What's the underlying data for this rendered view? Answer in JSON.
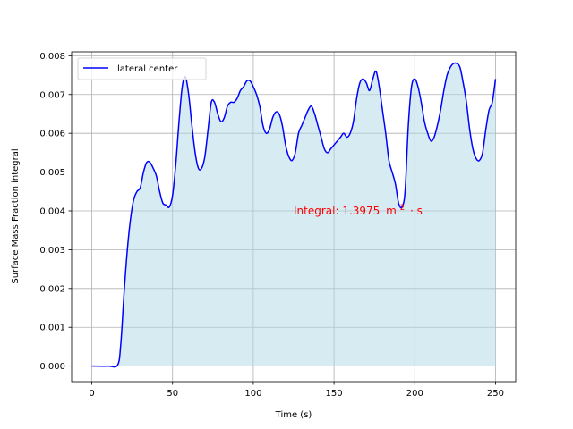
{
  "chart_data": {
    "type": "area",
    "title": "",
    "xlabel": "Time (s)",
    "ylabel": "Surface Mass Fraction integral",
    "xlim": [
      -12.5,
      262.5
    ],
    "ylim": [
      -0.0004,
      0.0081
    ],
    "xticks": [
      0,
      50,
      100,
      150,
      200,
      250
    ],
    "xtick_labels": [
      "0",
      "50",
      "100",
      "150",
      "200",
      "250"
    ],
    "yticks": [
      0.0,
      0.001,
      0.002,
      0.003,
      0.004,
      0.005,
      0.006,
      0.007,
      0.008
    ],
    "ytick_labels": [
      "0.000",
      "0.001",
      "0.002",
      "0.003",
      "0.004",
      "0.005",
      "0.006",
      "0.007",
      "0.008"
    ],
    "grid": true,
    "legend_position": "top-left",
    "line_color": "#0000ff",
    "fill_color": "#add8e6",
    "annotation": {
      "text_prefix": "Integral: 1.3975",
      "unit_base": "m",
      "unit_exp": "2",
      "unit_suffix": "· s",
      "x": 125,
      "y": 0.004,
      "color": "#ff0000"
    },
    "series": [
      {
        "name": "lateral center",
        "x": [
          0,
          10,
          16,
          18,
          20,
          22,
          24,
          26,
          28,
          30,
          32,
          34,
          36,
          38,
          40,
          42,
          44,
          46,
          48,
          50,
          52,
          54,
          56,
          58,
          60,
          62,
          64,
          66,
          68,
          70,
          72,
          74,
          76,
          78,
          80,
          82,
          84,
          86,
          88,
          90,
          92,
          94,
          96,
          98,
          100,
          102,
          104,
          106,
          108,
          110,
          112,
          114,
          116,
          118,
          120,
          122,
          124,
          126,
          128,
          130,
          132,
          134,
          136,
          138,
          140,
          142,
          144,
          146,
          148,
          150,
          152,
          154,
          156,
          158,
          160,
          162,
          164,
          166,
          168,
          170,
          172,
          174,
          176,
          178,
          180,
          182,
          184,
          186,
          188,
          190,
          192,
          194,
          196,
          198,
          200,
          202,
          204,
          206,
          208,
          210,
          212,
          214,
          216,
          218,
          220,
          222,
          224,
          226,
          228,
          230,
          232,
          234,
          236,
          238,
          240,
          242,
          244,
          246,
          248,
          250
        ],
        "y": [
          0,
          0,
          3e-05,
          0.0006,
          0.0019,
          0.003,
          0.0038,
          0.0043,
          0.0045,
          0.0046,
          0.005,
          0.00525,
          0.00525,
          0.0051,
          0.0049,
          0.0045,
          0.0042,
          0.00415,
          0.0041,
          0.0044,
          0.0052,
          0.0063,
          0.0072,
          0.00745,
          0.007,
          0.0062,
          0.0055,
          0.0051,
          0.0051,
          0.0054,
          0.0061,
          0.0068,
          0.0068,
          0.0065,
          0.0063,
          0.0064,
          0.0067,
          0.0068,
          0.0068,
          0.0069,
          0.0071,
          0.0072,
          0.00735,
          0.00735,
          0.0072,
          0.007,
          0.0067,
          0.0062,
          0.006,
          0.0061,
          0.0064,
          0.00655,
          0.0065,
          0.0062,
          0.0057,
          0.0054,
          0.0053,
          0.0055,
          0.006,
          0.0062,
          0.0064,
          0.0066,
          0.0067,
          0.0065,
          0.0062,
          0.0059,
          0.0056,
          0.0055,
          0.0056,
          0.0057,
          0.0058,
          0.0059,
          0.006,
          0.0059,
          0.006,
          0.0063,
          0.0069,
          0.0073,
          0.0074,
          0.0073,
          0.0071,
          0.0074,
          0.0076,
          0.0072,
          0.0066,
          0.006,
          0.0053,
          0.005,
          0.0047,
          0.0042,
          0.0041,
          0.0045,
          0.0062,
          0.0072,
          0.0074,
          0.0072,
          0.0068,
          0.0063,
          0.006,
          0.0058,
          0.0059,
          0.0062,
          0.0066,
          0.0071,
          0.0075,
          0.0077,
          0.0078,
          0.0078,
          0.0077,
          0.0073,
          0.0068,
          0.0061,
          0.0056,
          0.00535,
          0.0053,
          0.0055,
          0.0061,
          0.0066,
          0.0068,
          0.0074
        ]
      }
    ]
  }
}
